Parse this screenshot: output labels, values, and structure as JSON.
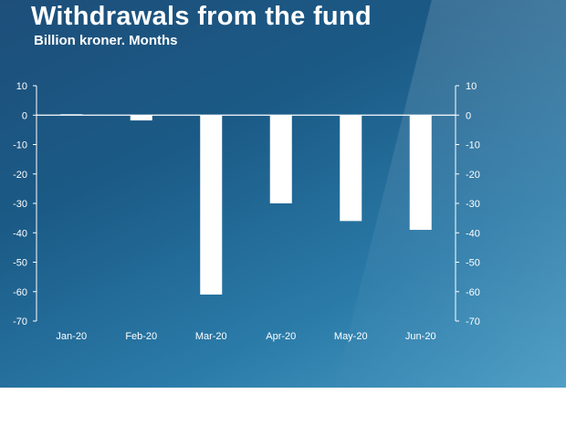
{
  "slide": {
    "title": "Withdrawals from the fund",
    "subtitle": "Billion kroner. Months"
  },
  "colors": {
    "bar": "#ffffff",
    "axis": "#ffffff",
    "background": "#1d5a86"
  },
  "chart_data": {
    "type": "bar",
    "title": "Withdrawals from the fund",
    "subtitle": "Billion kroner. Months",
    "categories": [
      "Jan-20",
      "Feb-20",
      "Mar-20",
      "Apr-20",
      "May-20",
      "Jun-20"
    ],
    "values": [
      0.3,
      -1.8,
      -61,
      -30,
      -36,
      -39
    ],
    "ylim": [
      -70,
      10
    ],
    "yticks": [
      10,
      0,
      -10,
      -20,
      -30,
      -40,
      -50,
      -60,
      -70
    ],
    "grid": false,
    "legend": "none",
    "axes": "left and right (mirrored)"
  }
}
